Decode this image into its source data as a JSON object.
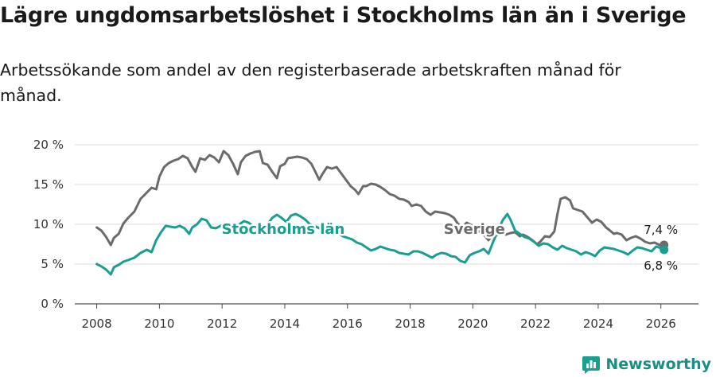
{
  "title": "Lägre ungdomsarbetslöshet i Stockholms län än i Sverige",
  "subtitle": "Arbetssökande som andel av den registerbaserade arbetskraften månad för månad.",
  "brand": {
    "name": "Newsworthy",
    "icon": "newsworthy-logo-icon"
  },
  "chart_data": {
    "type": "line",
    "title": "Lägre ungdomsarbetslöshet i Stockholms län än i Sverige",
    "xlabel": "",
    "ylabel": "",
    "xlim": [
      2007.3,
      2027.2
    ],
    "ylim": [
      0,
      20
    ],
    "yticks": [
      0,
      5,
      10,
      15,
      20
    ],
    "ytick_labels": [
      "0 %",
      "5 %",
      "10 %",
      "15 %",
      "20 %"
    ],
    "xticks": [
      2008,
      2010,
      2012,
      2014,
      2016,
      2018,
      2020,
      2022,
      2024,
      2026
    ],
    "xtick_labels": [
      "2008",
      "2010",
      "2012",
      "2014",
      "2016",
      "2018",
      "2020",
      "2022",
      "2024",
      "2026"
    ],
    "grid": "horizontal",
    "series": [
      {
        "name": "Sverige",
        "color": "#6b6b6b",
        "label": "Sverige",
        "end_label": "7,4 %",
        "points": [
          [
            2008.0,
            9.6
          ],
          [
            2008.15,
            9.2
          ],
          [
            2008.3,
            8.4
          ],
          [
            2008.45,
            7.4
          ],
          [
            2008.55,
            8.3
          ],
          [
            2008.7,
            8.8
          ],
          [
            2008.85,
            10.1
          ],
          [
            2009.0,
            10.8
          ],
          [
            2009.2,
            11.6
          ],
          [
            2009.4,
            13.2
          ],
          [
            2009.6,
            14.0
          ],
          [
            2009.75,
            14.6
          ],
          [
            2009.9,
            14.4
          ],
          [
            2010.0,
            16.0
          ],
          [
            2010.15,
            17.2
          ],
          [
            2010.3,
            17.7
          ],
          [
            2010.45,
            18.0
          ],
          [
            2010.6,
            18.2
          ],
          [
            2010.75,
            18.6
          ],
          [
            2010.9,
            18.3
          ],
          [
            2011.05,
            17.2
          ],
          [
            2011.15,
            16.6
          ],
          [
            2011.3,
            18.3
          ],
          [
            2011.45,
            18.1
          ],
          [
            2011.6,
            18.7
          ],
          [
            2011.75,
            18.4
          ],
          [
            2011.9,
            17.8
          ],
          [
            2012.05,
            19.2
          ],
          [
            2012.2,
            18.7
          ],
          [
            2012.35,
            17.6
          ],
          [
            2012.5,
            16.3
          ],
          [
            2012.6,
            17.8
          ],
          [
            2012.75,
            18.6
          ],
          [
            2012.9,
            18.9
          ],
          [
            2013.05,
            19.1
          ],
          [
            2013.2,
            19.2
          ],
          [
            2013.3,
            17.7
          ],
          [
            2013.45,
            17.5
          ],
          [
            2013.6,
            16.6
          ],
          [
            2013.75,
            15.8
          ],
          [
            2013.85,
            17.3
          ],
          [
            2014.0,
            17.6
          ],
          [
            2014.1,
            18.3
          ],
          [
            2014.25,
            18.4
          ],
          [
            2014.4,
            18.5
          ],
          [
            2014.55,
            18.4
          ],
          [
            2014.7,
            18.2
          ],
          [
            2014.85,
            17.6
          ],
          [
            2014.95,
            16.8
          ],
          [
            2015.1,
            15.6
          ],
          [
            2015.2,
            16.3
          ],
          [
            2015.35,
            17.2
          ],
          [
            2015.5,
            17.0
          ],
          [
            2015.65,
            17.2
          ],
          [
            2015.8,
            16.4
          ],
          [
            2015.95,
            15.6
          ],
          [
            2016.1,
            14.8
          ],
          [
            2016.25,
            14.3
          ],
          [
            2016.35,
            13.8
          ],
          [
            2016.5,
            14.8
          ],
          [
            2016.6,
            14.8
          ],
          [
            2016.75,
            15.1
          ],
          [
            2016.9,
            15.0
          ],
          [
            2017.05,
            14.7
          ],
          [
            2017.2,
            14.3
          ],
          [
            2017.35,
            13.8
          ],
          [
            2017.5,
            13.6
          ],
          [
            2017.65,
            13.2
          ],
          [
            2017.8,
            13.1
          ],
          [
            2017.95,
            12.8
          ],
          [
            2018.05,
            12.3
          ],
          [
            2018.2,
            12.5
          ],
          [
            2018.35,
            12.3
          ],
          [
            2018.5,
            11.6
          ],
          [
            2018.65,
            11.2
          ],
          [
            2018.8,
            11.6
          ],
          [
            2018.95,
            11.5
          ],
          [
            2019.1,
            11.4
          ],
          [
            2019.25,
            11.2
          ],
          [
            2019.4,
            10.8
          ],
          [
            2019.5,
            10.2
          ],
          [
            2019.65,
            9.6
          ],
          [
            2019.8,
            10.2
          ],
          [
            2019.95,
            9.9
          ],
          [
            2020.1,
            9.3
          ],
          [
            2020.25,
            9.0
          ],
          [
            2020.35,
            8.7
          ],
          [
            2020.5,
            8.0
          ],
          [
            2020.6,
            8.5
          ],
          [
            2020.75,
            8.6
          ],
          [
            2020.9,
            9.2
          ],
          [
            2021.05,
            8.7
          ],
          [
            2021.2,
            8.9
          ],
          [
            2021.35,
            9.0
          ],
          [
            2021.5,
            8.5
          ],
          [
            2021.6,
            8.7
          ],
          [
            2021.75,
            8.4
          ],
          [
            2021.9,
            8.0
          ],
          [
            2022.05,
            7.5
          ],
          [
            2022.15,
            7.8
          ],
          [
            2022.3,
            8.5
          ],
          [
            2022.45,
            8.4
          ],
          [
            2022.6,
            9.1
          ],
          [
            2022.7,
            11.3
          ],
          [
            2022.8,
            13.2
          ],
          [
            2022.95,
            13.4
          ],
          [
            2023.1,
            13.0
          ],
          [
            2023.2,
            12.0
          ],
          [
            2023.35,
            11.8
          ],
          [
            2023.5,
            11.6
          ],
          [
            2023.65,
            10.9
          ],
          [
            2023.8,
            10.2
          ],
          [
            2023.95,
            10.6
          ],
          [
            2024.1,
            10.3
          ],
          [
            2024.25,
            9.6
          ],
          [
            2024.35,
            9.3
          ],
          [
            2024.5,
            8.8
          ],
          [
            2024.6,
            8.9
          ],
          [
            2024.75,
            8.7
          ],
          [
            2024.9,
            8.0
          ],
          [
            2025.05,
            8.3
          ],
          [
            2025.2,
            8.5
          ],
          [
            2025.35,
            8.2
          ],
          [
            2025.5,
            7.8
          ],
          [
            2025.65,
            7.6
          ],
          [
            2025.8,
            7.7
          ],
          [
            2025.95,
            7.4
          ],
          [
            2026.1,
            7.4
          ]
        ]
      },
      {
        "name": "Stockholms län",
        "color": "#1a9e91",
        "label": "Stockholms län",
        "end_label": "6,8 %",
        "points": [
          [
            2008.0,
            5.0
          ],
          [
            2008.15,
            4.7
          ],
          [
            2008.3,
            4.3
          ],
          [
            2008.45,
            3.7
          ],
          [
            2008.55,
            4.6
          ],
          [
            2008.7,
            4.9
          ],
          [
            2008.85,
            5.3
          ],
          [
            2009.0,
            5.5
          ],
          [
            2009.2,
            5.8
          ],
          [
            2009.4,
            6.4
          ],
          [
            2009.6,
            6.8
          ],
          [
            2009.75,
            6.5
          ],
          [
            2009.9,
            8.0
          ],
          [
            2010.05,
            9.0
          ],
          [
            2010.2,
            9.8
          ],
          [
            2010.35,
            9.7
          ],
          [
            2010.5,
            9.6
          ],
          [
            2010.65,
            9.8
          ],
          [
            2010.8,
            9.5
          ],
          [
            2010.95,
            8.8
          ],
          [
            2011.05,
            9.6
          ],
          [
            2011.2,
            10.0
          ],
          [
            2011.35,
            10.7
          ],
          [
            2011.5,
            10.5
          ],
          [
            2011.65,
            9.6
          ],
          [
            2011.8,
            9.5
          ],
          [
            2011.95,
            9.8
          ],
          [
            2012.1,
            9.9
          ],
          [
            2012.25,
            9.0
          ],
          [
            2012.4,
            9.2
          ],
          [
            2012.55,
            10.0
          ],
          [
            2012.7,
            10.4
          ],
          [
            2012.85,
            10.2
          ],
          [
            2013.0,
            9.7
          ],
          [
            2013.15,
            9.6
          ],
          [
            2013.3,
            9.4
          ],
          [
            2013.45,
            10.0
          ],
          [
            2013.6,
            10.8
          ],
          [
            2013.75,
            11.2
          ],
          [
            2013.9,
            10.8
          ],
          [
            2014.05,
            10.3
          ],
          [
            2014.2,
            11.1
          ],
          [
            2014.35,
            11.3
          ],
          [
            2014.5,
            11.0
          ],
          [
            2014.65,
            10.6
          ],
          [
            2014.8,
            10.0
          ],
          [
            2014.95,
            9.8
          ],
          [
            2015.1,
            9.5
          ],
          [
            2015.25,
            9.2
          ],
          [
            2015.4,
            9.3
          ],
          [
            2015.55,
            8.8
          ],
          [
            2015.7,
            8.9
          ],
          [
            2015.85,
            8.5
          ],
          [
            2016.0,
            8.3
          ],
          [
            2016.15,
            8.1
          ],
          [
            2016.3,
            7.7
          ],
          [
            2016.45,
            7.5
          ],
          [
            2016.6,
            7.1
          ],
          [
            2016.75,
            6.7
          ],
          [
            2016.9,
            6.9
          ],
          [
            2017.05,
            7.2
          ],
          [
            2017.2,
            7.0
          ],
          [
            2017.35,
            6.8
          ],
          [
            2017.5,
            6.7
          ],
          [
            2017.65,
            6.4
          ],
          [
            2017.8,
            6.3
          ],
          [
            2017.95,
            6.2
          ],
          [
            2018.1,
            6.6
          ],
          [
            2018.25,
            6.6
          ],
          [
            2018.4,
            6.4
          ],
          [
            2018.55,
            6.1
          ],
          [
            2018.7,
            5.8
          ],
          [
            2018.85,
            6.2
          ],
          [
            2019.0,
            6.4
          ],
          [
            2019.15,
            6.3
          ],
          [
            2019.3,
            6.0
          ],
          [
            2019.45,
            5.9
          ],
          [
            2019.6,
            5.4
          ],
          [
            2019.75,
            5.2
          ],
          [
            2019.9,
            6.1
          ],
          [
            2020.05,
            6.4
          ],
          [
            2020.2,
            6.6
          ],
          [
            2020.35,
            6.9
          ],
          [
            2020.5,
            6.3
          ],
          [
            2020.65,
            7.8
          ],
          [
            2020.8,
            9.2
          ],
          [
            2020.95,
            10.5
          ],
          [
            2021.1,
            11.3
          ],
          [
            2021.2,
            10.6
          ],
          [
            2021.35,
            9.2
          ],
          [
            2021.5,
            8.8
          ],
          [
            2021.65,
            8.4
          ],
          [
            2021.8,
            8.2
          ],
          [
            2021.95,
            7.8
          ],
          [
            2022.1,
            7.3
          ],
          [
            2022.25,
            7.6
          ],
          [
            2022.4,
            7.5
          ],
          [
            2022.55,
            7.1
          ],
          [
            2022.7,
            6.8
          ],
          [
            2022.85,
            7.3
          ],
          [
            2023.0,
            7.0
          ],
          [
            2023.15,
            6.8
          ],
          [
            2023.3,
            6.6
          ],
          [
            2023.45,
            6.2
          ],
          [
            2023.6,
            6.5
          ],
          [
            2023.75,
            6.3
          ],
          [
            2023.9,
            6.0
          ],
          [
            2024.05,
            6.7
          ],
          [
            2024.2,
            7.1
          ],
          [
            2024.35,
            7.0
          ],
          [
            2024.5,
            6.9
          ],
          [
            2024.65,
            6.7
          ],
          [
            2024.8,
            6.5
          ],
          [
            2024.95,
            6.2
          ],
          [
            2025.1,
            6.7
          ],
          [
            2025.25,
            7.1
          ],
          [
            2025.4,
            7.0
          ],
          [
            2025.55,
            6.8
          ],
          [
            2025.7,
            6.6
          ],
          [
            2025.85,
            7.2
          ],
          [
            2026.0,
            7.0
          ],
          [
            2026.1,
            6.8
          ]
        ]
      }
    ]
  }
}
